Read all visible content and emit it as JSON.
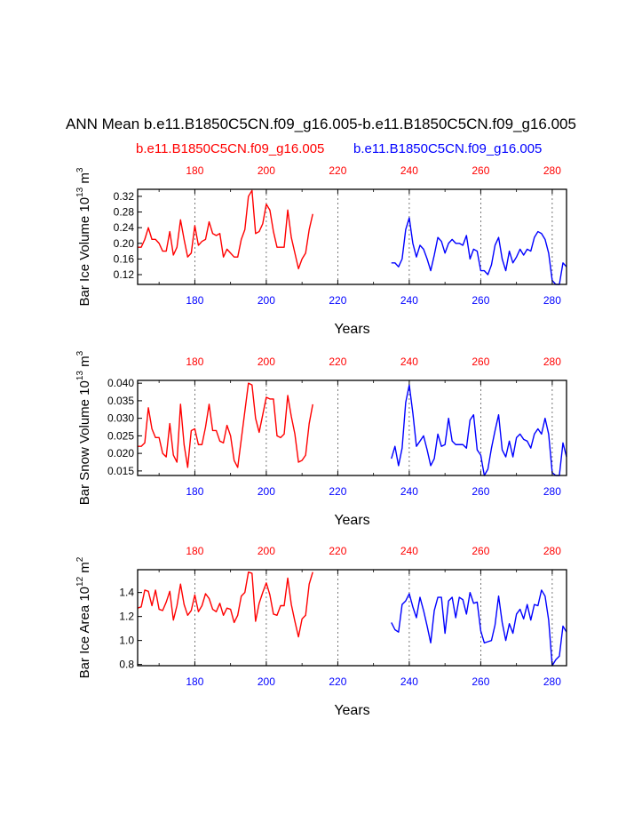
{
  "title": "ANN Mean b.e11.B1850C5CN.f09_g16.005-b.e11.B1850C5CN.f09_g16.005",
  "subtitle_left": "b.e11.B1850C5CN.f09_g16.005",
  "subtitle_right": "b.e11.B1850C5CN.f09_g16.005",
  "colors": {
    "case1": "#ff0000",
    "case2": "#0000ff",
    "axis": "#000000"
  },
  "chart_data": [
    {
      "type": "line",
      "ylabel": "Bar Ice Volume 10",
      "ylabel_exp": "13",
      "ylabel_unit": " m",
      "ylabel_unit_exp": "3",
      "xlabel": "Years",
      "xlim": [
        164,
        284
      ],
      "ylim": [
        0.095,
        0.338
      ],
      "yticks": [
        0.12,
        0.16,
        0.2,
        0.24,
        0.28,
        0.32
      ],
      "ytick_labels": [
        "0.12",
        "0.16",
        "0.20",
        "0.24",
        "0.28",
        "0.32"
      ],
      "xticks": [
        180,
        200,
        220,
        240,
        260,
        280
      ],
      "xtick_labels": [
        "180",
        "200",
        "220",
        "240",
        "260",
        "280"
      ],
      "vlines": [
        180,
        200,
        220,
        240,
        260,
        280
      ],
      "series": [
        {
          "name": "b.e11.B1850C5CN.f09_g16.005",
          "color": "#ff0000",
          "x_start": 164,
          "values": [
            0.19,
            0.19,
            0.21,
            0.24,
            0.21,
            0.21,
            0.2,
            0.18,
            0.18,
            0.23,
            0.17,
            0.19,
            0.26,
            0.21,
            0.165,
            0.175,
            0.245,
            0.195,
            0.205,
            0.21,
            0.255,
            0.225,
            0.22,
            0.225,
            0.165,
            0.185,
            0.175,
            0.165,
            0.165,
            0.21,
            0.235,
            0.32,
            0.335,
            0.225,
            0.23,
            0.25,
            0.3,
            0.285,
            0.23,
            0.19,
            0.19,
            0.19,
            0.285,
            0.215,
            0.175,
            0.135,
            0.16,
            0.175,
            0.235,
            0.275
          ]
        },
        {
          "name": "b.e11.B1850C5CN.f09_g16.005",
          "color": "#0000ff",
          "x_start": 235,
          "values": [
            0.15,
            0.15,
            0.14,
            0.16,
            0.235,
            0.265,
            0.2,
            0.165,
            0.195,
            0.185,
            0.16,
            0.13,
            0.17,
            0.215,
            0.205,
            0.175,
            0.2,
            0.21,
            0.2,
            0.2,
            0.195,
            0.22,
            0.16,
            0.185,
            0.18,
            0.13,
            0.13,
            0.12,
            0.145,
            0.195,
            0.215,
            0.16,
            0.13,
            0.18,
            0.15,
            0.165,
            0.185,
            0.17,
            0.185,
            0.18,
            0.215,
            0.23,
            0.225,
            0.21,
            0.175,
            0.105,
            0.095,
            0.095,
            0.15,
            0.14
          ]
        }
      ]
    },
    {
      "type": "line",
      "ylabel": "Bar Snow Volume 10",
      "ylabel_exp": "13",
      "ylabel_unit": " m",
      "ylabel_unit_exp": "3",
      "xlabel": "Years",
      "xlim": [
        164,
        284
      ],
      "ylim": [
        0.0137,
        0.0408
      ],
      "yticks": [
        0.015,
        0.02,
        0.025,
        0.03,
        0.035,
        0.04
      ],
      "ytick_labels": [
        "0.015",
        "0.020",
        "0.025",
        "0.030",
        "0.035",
        "0.040"
      ],
      "xticks": [
        180,
        200,
        220,
        240,
        260,
        280
      ],
      "xtick_labels": [
        "180",
        "200",
        "220",
        "240",
        "260",
        "280"
      ],
      "vlines": [
        180,
        200,
        220,
        240,
        260,
        280
      ],
      "series": [
        {
          "name": "b.e11.B1850C5CN.f09_g16.005",
          "color": "#ff0000",
          "x_start": 164,
          "values": [
            0.022,
            0.022,
            0.023,
            0.033,
            0.027,
            0.0245,
            0.0245,
            0.02,
            0.019,
            0.0285,
            0.0195,
            0.0175,
            0.034,
            0.0225,
            0.016,
            0.0265,
            0.027,
            0.0225,
            0.0225,
            0.0275,
            0.034,
            0.0265,
            0.0265,
            0.0235,
            0.023,
            0.028,
            0.025,
            0.018,
            0.016,
            0.024,
            0.032,
            0.04,
            0.0395,
            0.03,
            0.026,
            0.031,
            0.036,
            0.0355,
            0.0355,
            0.025,
            0.0245,
            0.0255,
            0.0365,
            0.0305,
            0.0255,
            0.0175,
            0.018,
            0.0195,
            0.0285,
            0.034
          ]
        },
        {
          "name": "b.e11.B1850C5CN.f09_g16.005",
          "color": "#0000ff",
          "x_start": 235,
          "values": [
            0.0185,
            0.022,
            0.0165,
            0.0215,
            0.0345,
            0.0395,
            0.0315,
            0.022,
            0.0235,
            0.025,
            0.021,
            0.0165,
            0.0185,
            0.0255,
            0.022,
            0.0225,
            0.03,
            0.0235,
            0.0225,
            0.0225,
            0.0225,
            0.0215,
            0.0295,
            0.031,
            0.021,
            0.0195,
            0.0137,
            0.0155,
            0.0215,
            0.0265,
            0.031,
            0.021,
            0.019,
            0.0235,
            0.019,
            0.0245,
            0.0255,
            0.024,
            0.0235,
            0.0215,
            0.0255,
            0.027,
            0.0255,
            0.03,
            0.0255,
            0.0145,
            0.0137,
            0.0137,
            0.023,
            0.019
          ]
        }
      ]
    },
    {
      "type": "line",
      "ylabel": "Bar Ice Area 10",
      "ylabel_exp": "12",
      "ylabel_unit": " m",
      "ylabel_unit_exp": "2",
      "xlabel": "Years",
      "xlim": [
        164,
        284
      ],
      "ylim": [
        0.79,
        1.59
      ],
      "yticks": [
        0.8,
        1.0,
        1.2,
        1.4
      ],
      "ytick_labels": [
        "0.8",
        "1.0",
        "1.2",
        "1.4"
      ],
      "xticks": [
        180,
        200,
        220,
        240,
        260,
        280
      ],
      "xtick_labels": [
        "180",
        "200",
        "220",
        "240",
        "260",
        "280"
      ],
      "vlines": [
        180,
        200,
        220,
        240,
        260,
        280
      ],
      "series": [
        {
          "name": "b.e11.B1850C5CN.f09_g16.005",
          "color": "#ff0000",
          "x_start": 164,
          "values": [
            1.27,
            1.28,
            1.42,
            1.41,
            1.29,
            1.42,
            1.26,
            1.25,
            1.32,
            1.41,
            1.17,
            1.29,
            1.47,
            1.3,
            1.21,
            1.25,
            1.38,
            1.24,
            1.29,
            1.39,
            1.35,
            1.26,
            1.24,
            1.31,
            1.21,
            1.27,
            1.26,
            1.15,
            1.21,
            1.37,
            1.4,
            1.57,
            1.56,
            1.16,
            1.31,
            1.4,
            1.48,
            1.38,
            1.22,
            1.21,
            1.29,
            1.29,
            1.52,
            1.3,
            1.16,
            1.03,
            1.18,
            1.21,
            1.47,
            1.57
          ]
        },
        {
          "name": "b.e11.B1850C5CN.f09_g16.005",
          "color": "#0000ff",
          "x_start": 235,
          "values": [
            1.15,
            1.09,
            1.07,
            1.3,
            1.33,
            1.39,
            1.28,
            1.19,
            1.36,
            1.25,
            1.12,
            0.98,
            1.25,
            1.36,
            1.36,
            1.06,
            1.33,
            1.36,
            1.19,
            1.36,
            1.34,
            1.22,
            1.4,
            1.31,
            1.32,
            1.08,
            0.98,
            0.99,
            1.0,
            1.13,
            1.37,
            1.15,
            1.0,
            1.14,
            1.06,
            1.22,
            1.26,
            1.18,
            1.3,
            1.17,
            1.3,
            1.29,
            1.42,
            1.37,
            1.17,
            0.79,
            0.84,
            0.87,
            1.12,
            1.07
          ]
        }
      ]
    }
  ]
}
